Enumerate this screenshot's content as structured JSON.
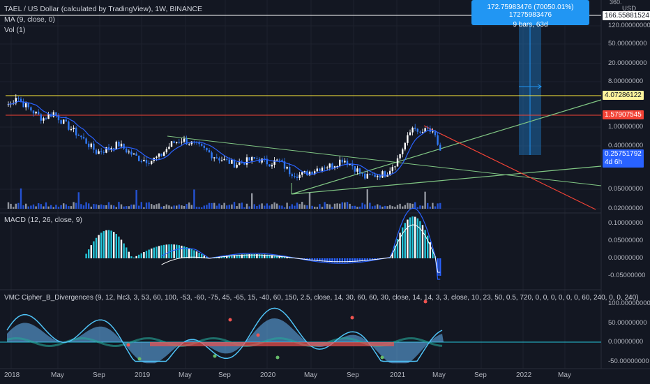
{
  "header": {
    "symbol_line": "TAEL / US Dollar (calculated by TradingView), 1W, BINANCE",
    "ma_line": "MA (9, close, 0)",
    "vol_line": "Vol (1)"
  },
  "macd_legend": "MACD (12, 26, close, 9)",
  "vmc_legend": "VMC Cipher_B_Divergences (9, 12, hlc3, 3, 53, 60, 100, -53, -60, -75, 45, -65, 15, -40, 60, 150, 2.5, close, 14, 30, 60, 60, 30, close, 14, 14, 3, 3, close, 10, 23, 50, 0.5, 720, 0, 0, 0, 0, 0, 0, 60, 240, 0, 0, 240)",
  "tooltip": {
    "line1": "172.75983476 (70050.01%) 17275983476",
    "line2": "9 bars, 63d"
  },
  "price_axis": {
    "unit": "USD",
    "top_partial": "360.",
    "labels": [
      "120.00000000",
      "50.00000000",
      "20.00000000",
      "8.00000000",
      "1.00000000",
      "0.40000000",
      "0.05000000",
      "0.02000000"
    ],
    "tags": {
      "measure_value": "166.55881524",
      "yellow_line": "4.07286122",
      "red_line": "1.57907545",
      "current_price": "0.25751792",
      "countdown": "4d 6h"
    }
  },
  "macd_axis": {
    "labels": [
      "0.10000000",
      "0.05000000",
      "0.00000000",
      "-0.05000000"
    ]
  },
  "vmc_axis": {
    "labels": [
      "100.00000000",
      "50.00000000",
      "0.00000000",
      "-50.00000000"
    ]
  },
  "time_axis": {
    "labels": [
      "2018",
      "May",
      "Sep",
      "2019",
      "May",
      "Sep",
      "2020",
      "May",
      "Sep",
      "2021",
      "May",
      "Sep",
      "2022",
      "May"
    ]
  },
  "colors": {
    "background": "#131722",
    "up": "#ffffff",
    "down": "#3179f5",
    "ma": "#2962ff",
    "yellow_line": "#ffeb3b",
    "red_line": "#f44336",
    "green_line": "#81c784",
    "macd_hist_pos": "#26c6da",
    "macd_hist_pos_fading": "#ffffff",
    "macd_hist_neg": "#2962ff",
    "tooltip_bg": "#2196f3"
  },
  "chart_data": [
    {
      "type": "candlestick",
      "title": "TAEL / US Dollar (calculated by TradingView), 1W, BINANCE",
      "scale": "log",
      "x_range": [
        "2018-01",
        "2022-06"
      ],
      "ylabel": "USD",
      "ma_period": 9,
      "close_series": [
        {
          "x": "2018-01-01",
          "y": 3.0
        },
        {
          "x": "2018-01-15",
          "y": 4.5
        },
        {
          "x": "2018-02-01",
          "y": 3.2
        },
        {
          "x": "2018-03-01",
          "y": 2.2
        },
        {
          "x": "2018-04-01",
          "y": 1.5
        },
        {
          "x": "2018-05-01",
          "y": 2.0
        },
        {
          "x": "2018-06-01",
          "y": 1.2
        },
        {
          "x": "2018-07-01",
          "y": 0.8
        },
        {
          "x": "2018-08-01",
          "y": 0.5
        },
        {
          "x": "2018-09-01",
          "y": 0.3
        },
        {
          "x": "2018-10-01",
          "y": 0.35
        },
        {
          "x": "2018-11-01",
          "y": 0.45
        },
        {
          "x": "2018-12-01",
          "y": 0.3
        },
        {
          "x": "2019-01-01",
          "y": 0.22
        },
        {
          "x": "2019-02-01",
          "y": 0.2
        },
        {
          "x": "2019-03-01",
          "y": 0.25
        },
        {
          "x": "2019-04-01",
          "y": 0.45
        },
        {
          "x": "2019-05-01",
          "y": 0.55
        },
        {
          "x": "2019-06-01",
          "y": 0.45
        },
        {
          "x": "2019-07-01",
          "y": 0.35
        },
        {
          "x": "2019-08-01",
          "y": 0.25
        },
        {
          "x": "2019-09-01",
          "y": 0.2
        },
        {
          "x": "2019-10-01",
          "y": 0.17
        },
        {
          "x": "2019-11-01",
          "y": 0.2
        },
        {
          "x": "2019-12-01",
          "y": 0.22
        },
        {
          "x": "2020-01-01",
          "y": 0.18
        },
        {
          "x": "2020-02-01",
          "y": 0.2
        },
        {
          "x": "2020-03-01",
          "y": 0.12
        },
        {
          "x": "2020-04-01",
          "y": 0.1
        },
        {
          "x": "2020-05-01",
          "y": 0.12
        },
        {
          "x": "2020-06-01",
          "y": 0.15
        },
        {
          "x": "2020-07-01",
          "y": 0.16
        },
        {
          "x": "2020-08-01",
          "y": 0.22
        },
        {
          "x": "2020-09-01",
          "y": 0.15
        },
        {
          "x": "2020-10-01",
          "y": 0.09
        },
        {
          "x": "2020-11-01",
          "y": 0.1
        },
        {
          "x": "2020-12-01",
          "y": 0.11
        },
        {
          "x": "2021-01-01",
          "y": 0.2
        },
        {
          "x": "2021-02-01",
          "y": 0.6
        },
        {
          "x": "2021-02-20",
          "y": 1.2
        },
        {
          "x": "2021-03-01",
          "y": 0.7
        },
        {
          "x": "2021-04-01",
          "y": 0.9
        },
        {
          "x": "2021-04-20",
          "y": 0.6
        },
        {
          "x": "2021-05-10",
          "y": 0.2575
        }
      ],
      "horizontal_lines": [
        {
          "value": 4.07286122,
          "color": "yellow"
        },
        {
          "value": 1.57907545,
          "color": "red"
        }
      ],
      "current_price": 0.25751792
    },
    {
      "type": "bar",
      "title": "Vol (1)"
    },
    {
      "type": "bar",
      "title": "MACD (12, 26, close, 9)",
      "ylim": [
        -0.06,
        0.12
      ]
    },
    {
      "type": "area",
      "title": "VMC Cipher_B_Divergences",
      "ylim": [
        -60,
        110
      ]
    }
  ]
}
